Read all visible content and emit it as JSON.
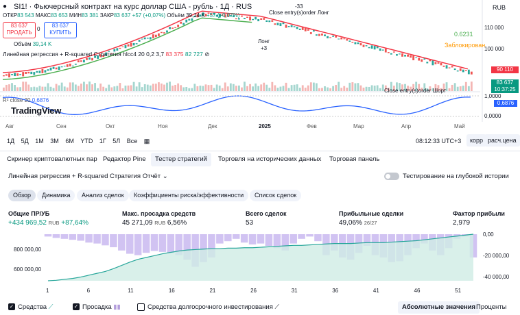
{
  "header": {
    "symbol_title": "SI1! · Фьючерсный контракт на курс доллар США - рубль · 1Д · RUS",
    "currency": "RUB",
    "ohlc": {
      "o_label": "ОТКР",
      "o": "83 543",
      "h_label": "МАКС",
      "h": "83 653",
      "l_label": "МИН",
      "l": "83 381",
      "c_label": "ЗАКР",
      "c": "83 637",
      "chg": "+57 (+0,07%)"
    },
    "volume_text": "Объём 39,14 K",
    "volume_chg": "+57 (+0,07%)",
    "sell": {
      "price": "83 637",
      "label": "ПРОДАТЬ"
    },
    "buy": {
      "price": "83 637",
      "label": "КУПИТЬ"
    },
    "spread": "0",
    "volume_label": "Объём",
    "volume_value": "39,14 K"
  },
  "indicators": {
    "lr_legend": "Линейная регрессия + R-squared Стратегия hlcc4 20 0,2 3,7",
    "lr_v1": "83 375",
    "lr_v2": "82 727",
    "r2_label": "R² close 20",
    "r2_value": "0,6876",
    "value_green": "0.6231",
    "blocked_text": "Заблокирован",
    "annotation_top": "Close entry(s)order Лонг",
    "annotation_top2": "-33",
    "annotation_long": "Лонг",
    "annotation_long_val": "+3",
    "annotation_bottom": "Close entry(s)order Шорт"
  },
  "logo": "TradingView",
  "price_axis": [
    "110 000",
    "100 000"
  ],
  "price_tags": [
    {
      "text": "90 110",
      "color": "#f23645"
    },
    {
      "text": "83 637",
      "color": "#089981"
    },
    {
      "text": "10:37:25",
      "color": "#089981"
    }
  ],
  "r2_axis": [
    "1,0000",
    "0,6876",
    "0,0000"
  ],
  "time_axis": [
    "Авг",
    "Сен",
    "Окт",
    "Ноя",
    "Дек",
    "2025",
    "Фев",
    "Мар",
    "Апр",
    "Май"
  ],
  "toolbar": {
    "ranges": [
      "1Д",
      "5Д",
      "1М",
      "3М",
      "6М",
      "YTD",
      "1Г",
      "5Л",
      "Все"
    ],
    "clock": "08:12:33 UTC+3",
    "corr": "корр",
    "calc": "расч.цена"
  },
  "tabs": [
    "Скринер криптовалютных пар",
    "Редактор Pine",
    "Тестер стратегий",
    "Торговля на исторических данных",
    "Торговая панель"
  ],
  "report": {
    "title": "Линейная регрессия + R-squared Стратегия Отчёт",
    "deep_label": "Тестирование на глубокой истории",
    "subtabs": [
      "Обзор",
      "Динамика",
      "Анализ сделок",
      "Коэффициенты риска/эффективности",
      "Список сделок"
    ]
  },
  "stats": [
    {
      "h": "Общие ПР/УБ",
      "v": "+434 969,52",
      "unit": "RUB",
      "extra": "+87,64%"
    },
    {
      "h": "Макс. просадка средств",
      "v": "45 271,09",
      "unit": "RUB",
      "extra": "6,56%"
    },
    {
      "h": "Всего сделок",
      "v": "53",
      "unit": "",
      "extra": ""
    },
    {
      "h": "Прибыльные сделки",
      "v": "49,06%",
      "unit": "",
      "extra": "26/27"
    },
    {
      "h": "Фактор прибыли",
      "v": "2,979",
      "unit": "",
      "extra": ""
    }
  ],
  "equity_axis_left": [
    "800 000,00",
    "600 000,00"
  ],
  "equity_axis_right": [
    "0,00",
    "-20 000,00",
    "-40 000,00"
  ],
  "equity_x": [
    "1",
    "6",
    "11",
    "16",
    "21",
    "26",
    "31",
    "36",
    "41",
    "46",
    "51"
  ],
  "equity": [
    0.0,
    0.01,
    0.03,
    0.05,
    0.08,
    0.12,
    0.16,
    0.2,
    0.26,
    0.33,
    0.4,
    0.46,
    0.5,
    0.54,
    0.58,
    0.61,
    0.64,
    0.66,
    0.67,
    0.68,
    0.69,
    0.69,
    0.7,
    0.7,
    0.71,
    0.71,
    0.72,
    0.73,
    0.74,
    0.75,
    0.76,
    0.76,
    0.77,
    0.78,
    0.79,
    0.8,
    0.8,
    0.8,
    0.81,
    0.82,
    0.82,
    0.82,
    0.83,
    0.84,
    0.85,
    0.86,
    0.88,
    0.9,
    0.92,
    0.94,
    0.96,
    0.98,
    1.0
  ],
  "drawdown": [
    0.05,
    0.08,
    0.1,
    0.12,
    0.14,
    0.18,
    0.2,
    0.24,
    0.28,
    0.35,
    0.42,
    0.45,
    0.4,
    0.36,
    0.38,
    0.4,
    0.45,
    0.55,
    0.7,
    0.6,
    0.5,
    0.2,
    0.15,
    0.1,
    0.18,
    0.22,
    0.2,
    0.25,
    0.3,
    0.35,
    0.2,
    0.1,
    0.05,
    0.15,
    0.45,
    0.35,
    0.5,
    0.55,
    0.4,
    0.25,
    0.45,
    0.5,
    0.6,
    0.58,
    0.45,
    0.3,
    0.2,
    0.35,
    0.45,
    0.3,
    0.1,
    0.05,
    0.5
  ],
  "bottom": {
    "strategy": "Средства",
    "drawdown": "Просадка",
    "longterm": "Средства долгосрочного инвестирования",
    "abs": "Абсолютные значения",
    "pct": "Проценты"
  }
}
